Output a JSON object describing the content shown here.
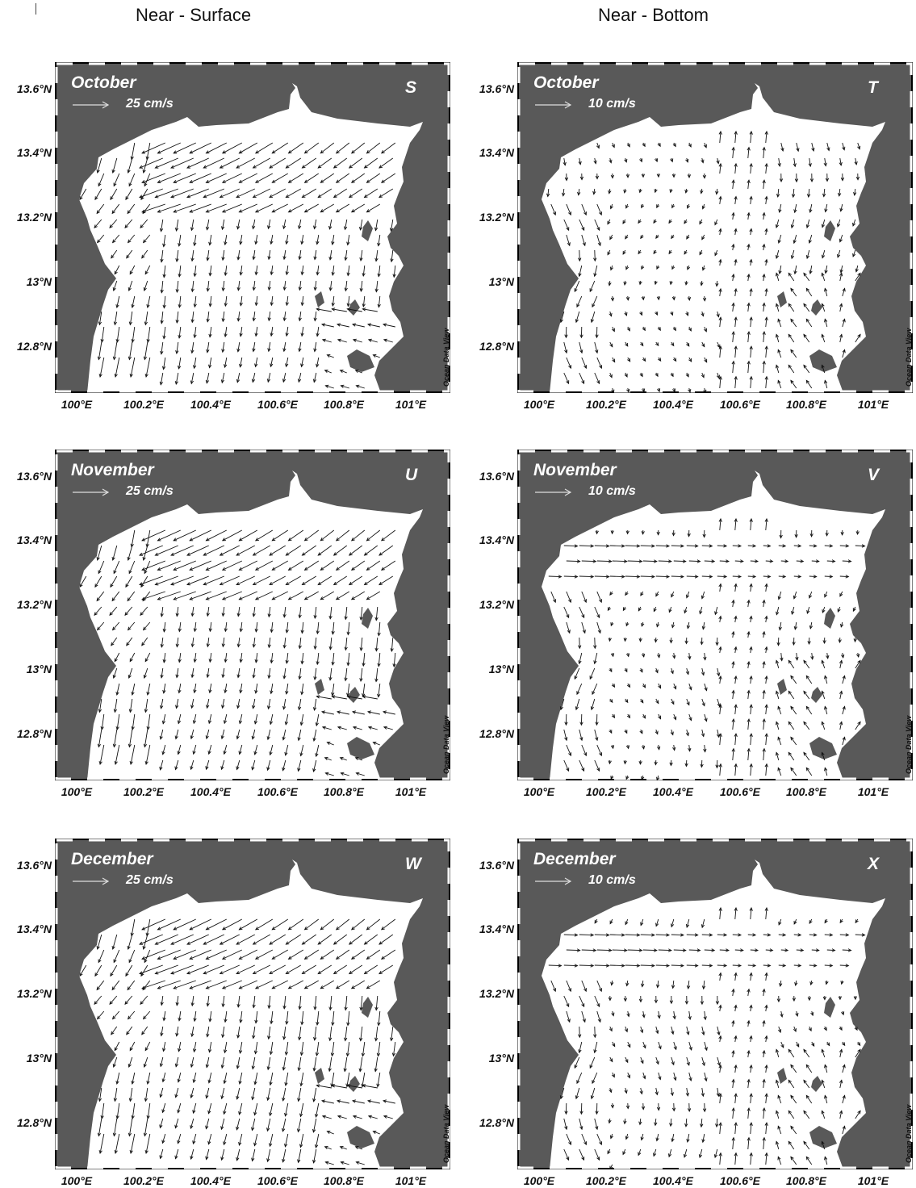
{
  "columns": {
    "left": "Near - Surface",
    "right": "Near - Bottom"
  },
  "lat_ticks": [
    "13.6°N",
    "13.4°N",
    "13.2°N",
    "13°N",
    "12.8°N"
  ],
  "lon_ticks": [
    "100°E",
    "100.2°E",
    "100.4°E",
    "100.6°E",
    "100.8°E",
    "101°E"
  ],
  "watermark": "Ocean Data View",
  "colors": {
    "land": "#595959",
    "water": "#ffffff",
    "arrow": "#111111",
    "scale_arrow": "#dddddd"
  },
  "panels": [
    {
      "id": "S",
      "month": "October",
      "letter": "S",
      "scale": "25 cm/s",
      "layer": "Near - Surface"
    },
    {
      "id": "T",
      "month": "October",
      "letter": "T",
      "scale": "10 cm/s",
      "layer": "Near - Bottom"
    },
    {
      "id": "U",
      "month": "November",
      "letter": "U",
      "scale": "25 cm/s",
      "layer": "Near - Surface"
    },
    {
      "id": "V",
      "month": "November",
      "letter": "V",
      "scale": "10 cm/s",
      "layer": "Near - Bottom"
    },
    {
      "id": "W",
      "month": "December",
      "letter": "W",
      "scale": "25 cm/s",
      "layer": "Near - Surface"
    },
    {
      "id": "X",
      "month": "December",
      "letter": "X",
      "scale": "10 cm/s",
      "layer": "Near - Bottom"
    }
  ]
}
